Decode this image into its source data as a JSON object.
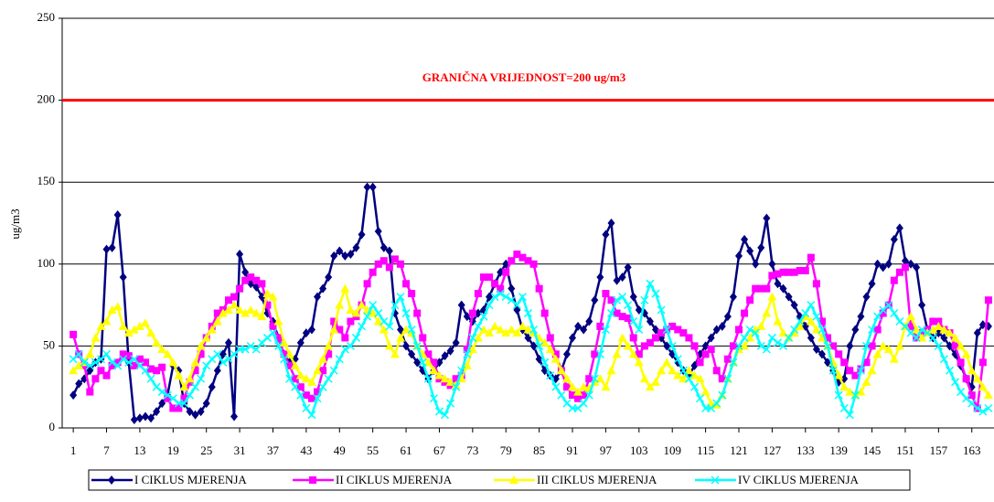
{
  "chart_data": {
    "type": "line",
    "ylabel": "ug/m3",
    "threshold": {
      "value": 200,
      "label": "GRANIČNA VRIJEDNOST=200 ug/m3",
      "color": "#ff0000"
    },
    "ylim": [
      0,
      250
    ],
    "yticks": [
      0,
      50,
      100,
      150,
      200,
      250
    ],
    "grid": true,
    "xlim": [
      -1,
      167
    ],
    "xticks": [
      1,
      7,
      13,
      19,
      25,
      31,
      37,
      43,
      49,
      55,
      61,
      67,
      73,
      79,
      85,
      91,
      97,
      103,
      109,
      115,
      121,
      127,
      133,
      139,
      145,
      151,
      157,
      163
    ],
    "legend": "bottom",
    "x": [
      1,
      2,
      3,
      4,
      5,
      6,
      7,
      8,
      9,
      10,
      11,
      12,
      13,
      14,
      15,
      16,
      17,
      18,
      19,
      20,
      21,
      22,
      23,
      24,
      25,
      26,
      27,
      28,
      29,
      30,
      31,
      32,
      33,
      34,
      35,
      36,
      37,
      38,
      39,
      40,
      41,
      42,
      43,
      44,
      45,
      46,
      47,
      48,
      49,
      50,
      51,
      52,
      53,
      54,
      55,
      56,
      57,
      58,
      59,
      60,
      61,
      62,
      63,
      64,
      65,
      66,
      67,
      68,
      69,
      70,
      71,
      72,
      73,
      74,
      75,
      76,
      77,
      78,
      79,
      80,
      81,
      82,
      83,
      84,
      85,
      86,
      87,
      88,
      89,
      90,
      91,
      92,
      93,
      94,
      95,
      96,
      97,
      98,
      99,
      100,
      101,
      102,
      103,
      104,
      105,
      106,
      107,
      108,
      109,
      110,
      111,
      112,
      113,
      114,
      115,
      116,
      117,
      118,
      119,
      120,
      121,
      122,
      123,
      124,
      125,
      126,
      127,
      128,
      129,
      130,
      131,
      132,
      133,
      134,
      135,
      136,
      137,
      138,
      139,
      140,
      141,
      142,
      143,
      144,
      145,
      146,
      147,
      148,
      149,
      150,
      151,
      152,
      153,
      154,
      155,
      156,
      157,
      158,
      159,
      160,
      161,
      162,
      163,
      164,
      165,
      166
    ],
    "series": [
      {
        "name": "I CIKLUS MJERENJA",
        "color": "#000080",
        "marker": "diamond",
        "values": [
          20,
          27,
          30,
          35,
          40,
          42,
          109,
          110,
          130,
          92,
          40,
          5,
          6,
          7,
          6,
          10,
          15,
          20,
          38,
          35,
          15,
          10,
          8,
          10,
          15,
          25,
          35,
          45,
          52,
          7,
          106,
          95,
          88,
          86,
          80,
          70,
          65,
          55,
          45,
          40,
          42,
          52,
          58,
          60,
          80,
          85,
          92,
          105,
          108,
          105,
          106,
          110,
          118,
          147,
          147,
          120,
          110,
          108,
          70,
          60,
          50,
          45,
          40,
          35,
          30,
          35,
          40,
          44,
          47,
          52,
          75,
          68,
          65,
          70,
          72,
          80,
          88,
          95,
          100,
          85,
          72,
          60,
          55,
          50,
          42,
          35,
          32,
          30,
          35,
          45,
          55,
          62,
          60,
          65,
          78,
          92,
          118,
          125,
          90,
          92,
          98,
          80,
          72,
          70,
          65,
          60,
          55,
          50,
          45,
          40,
          35,
          32,
          38,
          45,
          50,
          55,
          60,
          62,
          68,
          80,
          105,
          115,
          108,
          100,
          110,
          128,
          100,
          88,
          85,
          80,
          75,
          68,
          62,
          55,
          48,
          45,
          40,
          35,
          28,
          30,
          50,
          60,
          68,
          80,
          88,
          100,
          98,
          100,
          115,
          122,
          102,
          100,
          98,
          75,
          60,
          55,
          58,
          55,
          50,
          45,
          38,
          30,
          25,
          58,
          63,
          62
        ]
      },
      {
        "name": "II CIKLUS MJERENJA",
        "color": "#ff00ff",
        "marker": "square",
        "values": [
          57,
          45,
          38,
          22,
          30,
          35,
          32,
          38,
          40,
          45,
          44,
          38,
          42,
          40,
          36,
          35,
          37,
          18,
          12,
          12,
          18,
          28,
          35,
          45,
          55,
          62,
          70,
          72,
          78,
          80,
          85,
          90,
          92,
          90,
          88,
          75,
          62,
          55,
          45,
          38,
          30,
          25,
          20,
          18,
          22,
          35,
          45,
          65,
          60,
          55,
          65,
          68,
          75,
          88,
          95,
          100,
          102,
          98,
          103,
          100,
          88,
          82,
          70,
          55,
          45,
          40,
          30,
          28,
          26,
          30,
          32,
          48,
          70,
          82,
          92,
          92,
          88,
          85,
          95,
          102,
          106,
          104,
          102,
          100,
          85,
          70,
          55,
          45,
          35,
          25,
          20,
          18,
          20,
          30,
          45,
          62,
          82,
          78,
          70,
          68,
          67,
          55,
          45,
          50,
          52,
          55,
          58,
          60,
          62,
          60,
          58,
          55,
          50,
          40,
          45,
          48,
          35,
          30,
          42,
          50,
          60,
          70,
          78,
          85,
          85,
          85,
          93,
          94,
          95,
          95,
          95,
          96,
          96,
          104,
          88,
          65,
          55,
          50,
          45,
          40,
          35,
          32,
          36,
          40,
          50,
          60,
          70,
          75,
          90,
          95,
          98,
          62,
          55,
          58,
          60,
          65,
          65,
          60,
          58,
          50,
          40,
          30,
          20,
          12,
          40,
          78
        ]
      },
      {
        "name": "III CIKLUS MJERENJA",
        "color": "#ffff00",
        "marker": "triangle",
        "values": [
          35,
          38,
          40,
          45,
          55,
          62,
          65,
          72,
          74,
          62,
          58,
          60,
          62,
          64,
          58,
          52,
          48,
          45,
          40,
          32,
          25,
          30,
          40,
          50,
          55,
          60,
          65,
          70,
          72,
          75,
          72,
          70,
          72,
          70,
          68,
          82,
          80,
          65,
          52,
          45,
          38,
          32,
          30,
          28,
          35,
          42,
          50,
          60,
          75,
          85,
          72,
          70,
          75,
          72,
          70,
          65,
          60,
          50,
          45,
          55,
          60,
          58,
          50,
          45,
          40,
          35,
          32,
          30,
          28,
          26,
          30,
          38,
          48,
          55,
          60,
          58,
          62,
          60,
          58,
          60,
          58,
          62,
          60,
          58,
          55,
          52,
          48,
          42,
          35,
          30,
          25,
          22,
          25,
          24,
          28,
          30,
          25,
          35,
          45,
          55,
          50,
          45,
          40,
          30,
          25,
          28,
          35,
          40,
          35,
          32,
          30,
          35,
          32,
          30,
          22,
          15,
          14,
          20,
          30,
          40,
          48,
          50,
          55,
          60,
          62,
          70,
          80,
          65,
          58,
          55,
          58,
          62,
          68,
          65,
          60,
          55,
          50,
          40,
          32,
          25,
          22,
          20,
          22,
          28,
          35,
          45,
          50,
          48,
          42,
          50,
          62,
          68,
          60,
          55,
          58,
          60,
          62,
          60,
          58,
          55,
          50,
          45,
          35,
          30,
          25,
          20
        ]
      },
      {
        "name": "IV CIKLUS MJERENJA",
        "color": "#00ffff",
        "marker": "x",
        "values": [
          42,
          45,
          40,
          38,
          40,
          42,
          45,
          40,
          38,
          42,
          40,
          42,
          38,
          35,
          30,
          25,
          22,
          20,
          18,
          15,
          15,
          20,
          25,
          30,
          38,
          42,
          45,
          40,
          42,
          45,
          48,
          48,
          50,
          48,
          52,
          55,
          58,
          50,
          42,
          30,
          25,
          20,
          12,
          8,
          18,
          25,
          30,
          35,
          42,
          48,
          50,
          55,
          62,
          68,
          75,
          70,
          65,
          62,
          75,
          80,
          70,
          60,
          50,
          40,
          30,
          18,
          10,
          8,
          15,
          25,
          35,
          45,
          55,
          62,
          68,
          75,
          80,
          82,
          80,
          78,
          75,
          80,
          70,
          60,
          50,
          40,
          32,
          25,
          20,
          15,
          12,
          12,
          15,
          20,
          30,
          45,
          60,
          70,
          78,
          80,
          75,
          65,
          60,
          78,
          88,
          82,
          72,
          60,
          50,
          42,
          35,
          30,
          25,
          18,
          12,
          12,
          15,
          20,
          30,
          40,
          50,
          55,
          60,
          58,
          50,
          48,
          55,
          52,
          50,
          55,
          60,
          65,
          70,
          75,
          68,
          60,
          50,
          35,
          20,
          12,
          8,
          20,
          35,
          50,
          60,
          68,
          72,
          75,
          70,
          65,
          62,
          58,
          55,
          60,
          58,
          55,
          50,
          42,
          35,
          28,
          22,
          18,
          15,
          12,
          10,
          12
        ]
      }
    ]
  }
}
